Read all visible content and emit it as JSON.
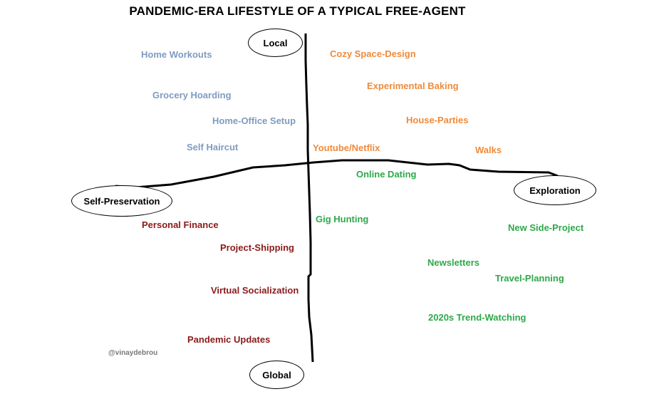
{
  "title": "PANDEMIC-ERA LIFESTYLE OF A TYPICAL FREE-AGENT",
  "axes": {
    "top": "Local",
    "bottom": "Global",
    "left": "Self-Preservation",
    "right": "Exploration"
  },
  "colors": {
    "blue": "#7f9bc0",
    "orange": "#f08a3a",
    "green": "#2ea84a",
    "maroon": "#8b1a1a"
  },
  "items": {
    "home_workouts": "Home Workouts",
    "grocery_hoarding": "Grocery Hoarding",
    "home_office_setup": "Home-Office Setup",
    "self_haircut": "Self Haircut",
    "cozy_space_design": "Cozy Space-Design",
    "experimental_baking": "Experimental Baking",
    "house_parties": "House-Parties",
    "walks": "Walks",
    "youtube_netflix": "Youtube/Netflix",
    "online_dating": "Online Dating",
    "gig_hunting": "Gig Hunting",
    "new_side_project": "New Side-Project",
    "newsletters": "Newsletters",
    "travel_planning": "Travel-Planning",
    "trend_watching": "2020s Trend-Watching",
    "personal_finance": "Personal Finance",
    "project_shipping": "Project-Shipping",
    "virtual_socialization": "Virtual Socialization",
    "pandemic_updates": "Pandemic Updates"
  },
  "handle": "@vinaydebrou"
}
